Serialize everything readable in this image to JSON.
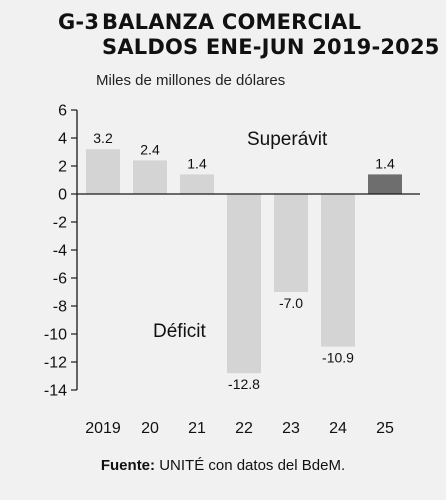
{
  "figure": {
    "number": "G-3",
    "title_line1": "BALANZA COMERCIAL",
    "title_line2": "SALDOS ENE-JUN 2019-2025",
    "subtitle": "Miles de millones de dólares",
    "source_label": "Fuente:",
    "source_text": " UNITÉ con datos del BdeM."
  },
  "colors": {
    "background": "#f1f1f1",
    "bar": "#d4d4d4",
    "bar_highlight": "#6e6e6e",
    "axis": "#1a1a1a"
  },
  "chart_data": {
    "type": "bar",
    "categories": [
      "2019",
      "20",
      "21",
      "22",
      "23",
      "24",
      "25"
    ],
    "values": [
      3.2,
      2.4,
      1.4,
      -12.8,
      -7.0,
      -10.9,
      1.4
    ],
    "value_labels": [
      "3.2",
      "2.4",
      "1.4",
      "-12.8",
      "-7.0",
      "-10.9",
      "1.4"
    ],
    "highlight_index": 6,
    "ylim": [
      -14,
      6
    ],
    "yticks": [
      6,
      4,
      2,
      0,
      -2,
      -4,
      -6,
      -8,
      -10,
      -12,
      -14
    ],
    "annotations": [
      {
        "text": "Superávit",
        "x_category": "22",
        "y": 4
      },
      {
        "text": "Déficit",
        "x_category": "20",
        "y": -9.7
      }
    ],
    "xlabel": "",
    "ylabel": "",
    "grid": false
  }
}
